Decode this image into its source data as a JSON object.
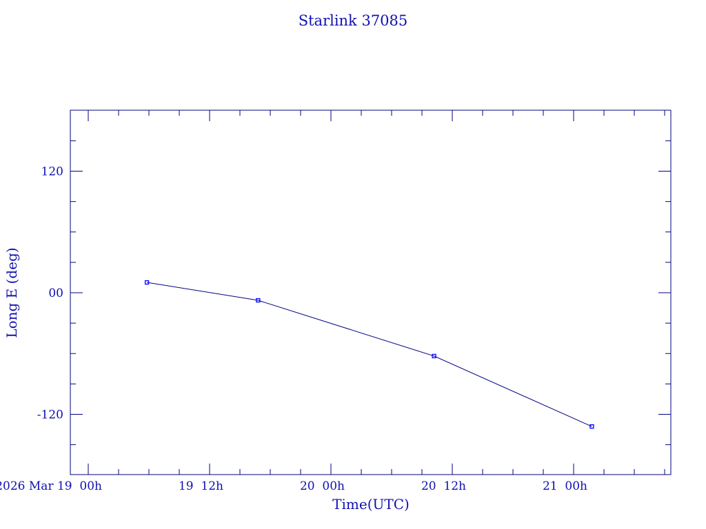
{
  "chart_data": {
    "type": "line",
    "title": "Starlink 37085",
    "xlabel": "Time(UTC)",
    "ylabel": "Long E (deg)",
    "x_unit": "hours since 2026 Mar 19 00h",
    "xlim": [
      -1.8,
      57.6
    ],
    "ylim": [
      -180,
      180
    ],
    "x_ticks": [
      {
        "value": 0,
        "label": "2026 Mar 19  00h"
      },
      {
        "value": 12,
        "label": "19  12h"
      },
      {
        "value": 24,
        "label": "20  00h"
      },
      {
        "value": 36,
        "label": "20  12h"
      },
      {
        "value": 48,
        "label": "21  00h"
      }
    ],
    "y_ticks": [
      {
        "value": 120,
        "label": "120"
      },
      {
        "value": 0,
        "label": "00"
      },
      {
        "value": -120,
        "label": "-120"
      }
    ],
    "grid": false,
    "series": [
      {
        "name": "Starlink 37085",
        "x": [
          5.8,
          16.8,
          34.2,
          49.8
        ],
        "y": [
          10.2,
          -7.5,
          -62.5,
          -132
        ]
      }
    ],
    "colors": {
      "axis": "#000080",
      "text": "#1010b0",
      "line": "#000080",
      "marker": "#0000ff"
    }
  }
}
